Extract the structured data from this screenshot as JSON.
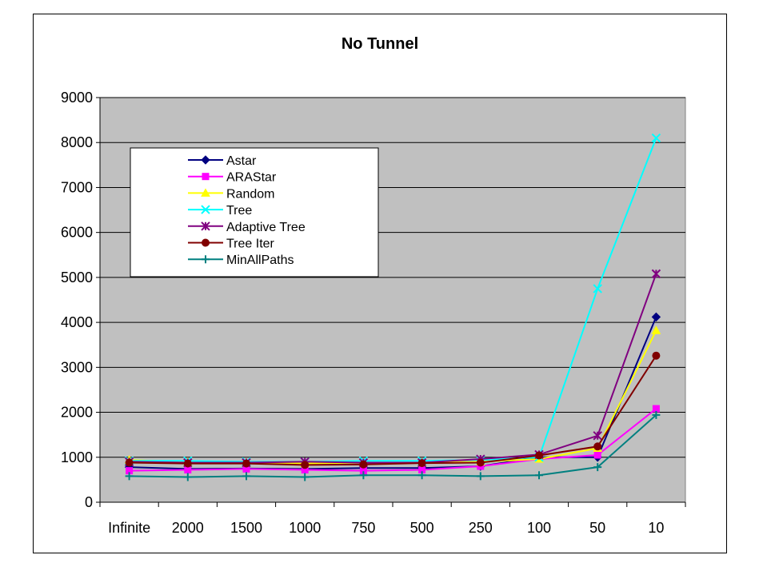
{
  "chart_data": {
    "type": "line",
    "title": "No Tunnel",
    "xlabel": "",
    "ylabel": "",
    "categories": [
      "Infinite",
      "2000",
      "1500",
      "1000",
      "750",
      "500",
      "250",
      "100",
      "50",
      "10"
    ],
    "ylim": [
      0,
      9000
    ],
    "yticks": [
      "0",
      "1000",
      "2000",
      "3000",
      "4000",
      "5000",
      "6000",
      "7000",
      "8000",
      "9000"
    ],
    "grid": true,
    "legend_placement": "upper-left",
    "plot_background": "#C0C0C0",
    "series": [
      {
        "name": "Astar",
        "color": "#000080",
        "marker": "diamond",
        "values": [
          780,
          740,
          750,
          740,
          760,
          760,
          800,
          1000,
          1000,
          4120
        ]
      },
      {
        "name": "ARAStar",
        "color": "#FF00FF",
        "marker": "square",
        "values": [
          700,
          720,
          740,
          720,
          700,
          720,
          800,
          960,
          1050,
          2080
        ]
      },
      {
        "name": "Random",
        "color": "#FFFF00",
        "marker": "triangle",
        "values": [
          940,
          890,
          880,
          860,
          880,
          880,
          900,
          960,
          1200,
          3820
        ]
      },
      {
        "name": "Tree",
        "color": "#00FFFF",
        "marker": "x",
        "values": [
          920,
          920,
          900,
          900,
          920,
          920,
          940,
          1000,
          4750,
          8100
        ]
      },
      {
        "name": "Adaptive Tree",
        "color": "#800080",
        "marker": "star",
        "values": [
          900,
          880,
          880,
          900,
          880,
          880,
          960,
          1060,
          1480,
          5080
        ]
      },
      {
        "name": "Tree Iter",
        "color": "#800000",
        "marker": "circle",
        "values": [
          880,
          860,
          860,
          830,
          840,
          870,
          880,
          1040,
          1240,
          3260
        ]
      },
      {
        "name": "MinAllPaths",
        "color": "#008080",
        "marker": "plus",
        "values": [
          580,
          560,
          580,
          560,
          600,
          600,
          580,
          600,
          780,
          1940
        ]
      }
    ]
  }
}
